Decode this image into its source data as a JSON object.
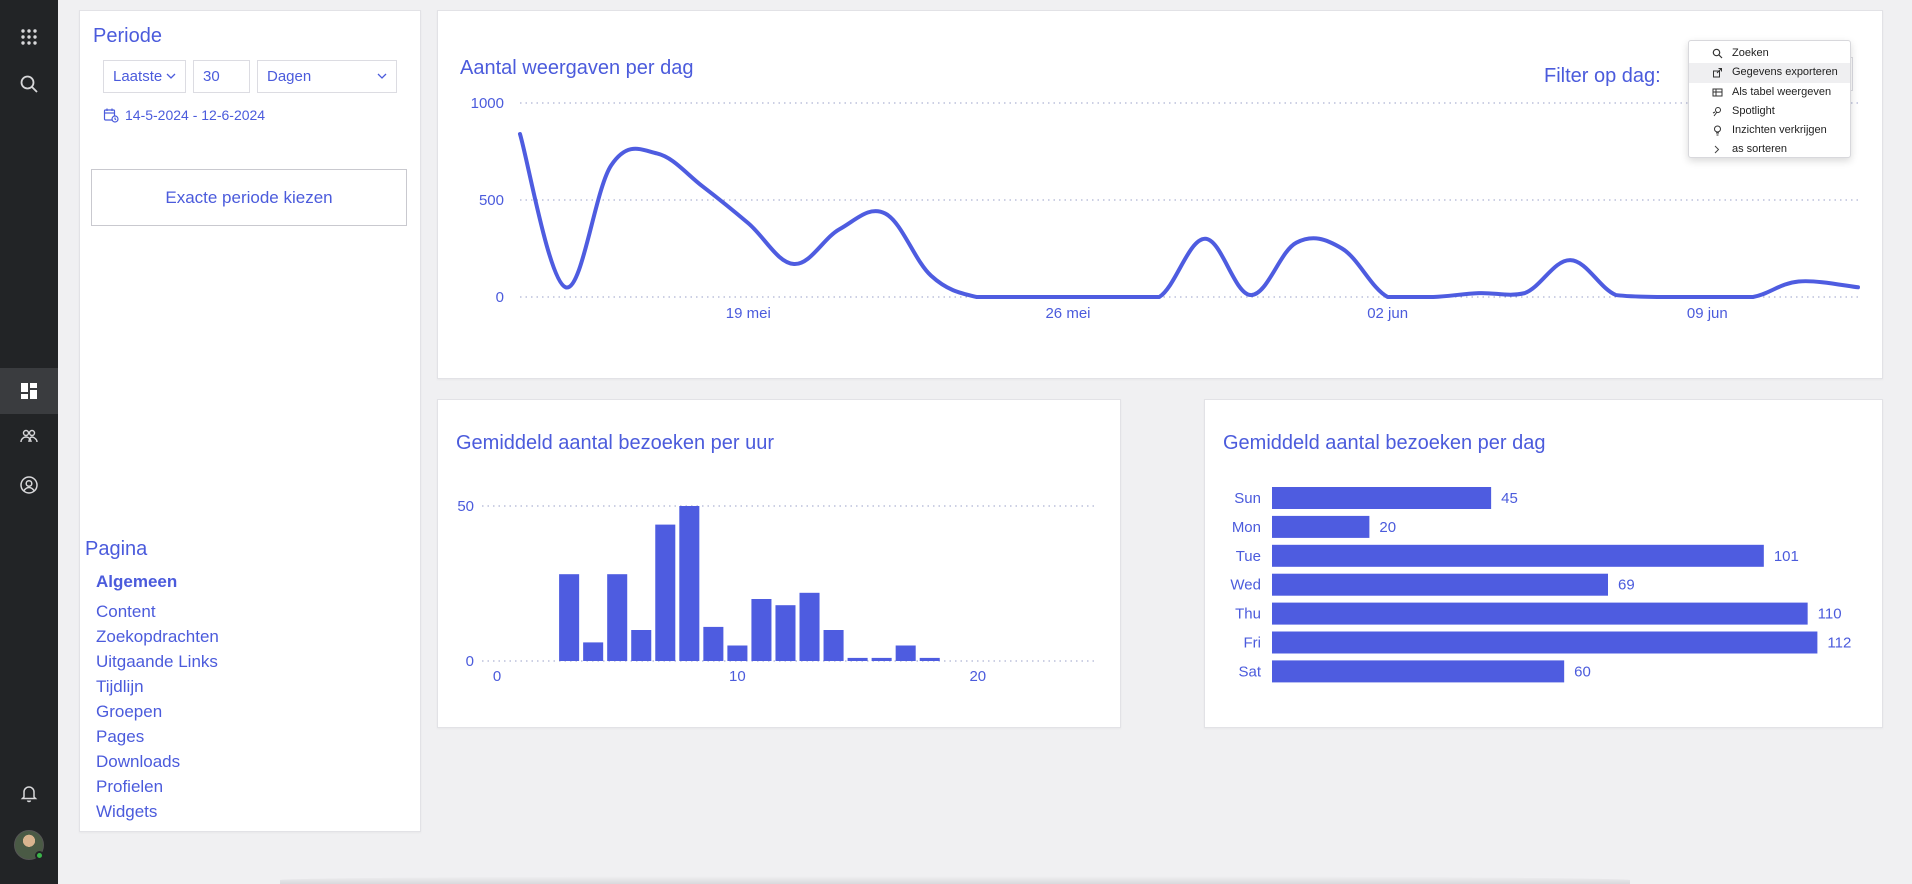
{
  "rail": {
    "icons": [
      "apps-icon",
      "search-icon",
      "dashboard-icon",
      "groups-icon",
      "account-icon",
      "bell-icon"
    ]
  },
  "period": {
    "title": "Periode",
    "range_type": "Laatste",
    "amount": "30",
    "unit": "Dagen",
    "date_range": "14-5-2024 - 12-6-2024",
    "exact_button": "Exacte periode kiezen"
  },
  "pages": {
    "title": "Pagina",
    "items": [
      "Algemeen",
      "Content",
      "Zoekopdrachten",
      "Uitgaande Links",
      "Tijdlijn",
      "Groepen",
      "Pages",
      "Downloads",
      "Profielen",
      "Widgets"
    ]
  },
  "views_chart": {
    "filter_label": "Filter op dag:"
  },
  "context_menu": {
    "items": [
      {
        "label": "Zoeken",
        "icon": "search-icon"
      },
      {
        "label": "Gegevens exporteren",
        "icon": "export-icon"
      },
      {
        "label": "Als tabel weergeven",
        "icon": "table-icon"
      },
      {
        "label": "Spotlight",
        "icon": "spotlight-icon"
      },
      {
        "label": "Inzichten verkrijgen",
        "icon": "lightbulb-icon"
      },
      {
        "label": "as sorteren",
        "icon": ""
      }
    ]
  },
  "chart_data": [
    {
      "type": "line",
      "title": "Aantal weergaven per dag",
      "x": [
        "2024-05-14",
        "2024-05-15",
        "2024-05-16",
        "2024-05-17",
        "2024-05-18",
        "2024-05-19",
        "2024-05-20",
        "2024-05-21",
        "2024-05-22",
        "2024-05-23",
        "2024-05-24",
        "2024-05-25",
        "2024-05-26",
        "2024-05-27",
        "2024-05-28",
        "2024-05-29",
        "2024-05-30",
        "2024-05-31",
        "2024-06-01",
        "2024-06-02",
        "2024-06-03",
        "2024-06-04",
        "2024-06-05",
        "2024-06-06",
        "2024-06-07",
        "2024-06-08",
        "2024-06-09",
        "2024-06-10",
        "2024-06-11"
      ],
      "values": [
        840,
        50,
        680,
        740,
        570,
        380,
        170,
        350,
        430,
        110,
        0,
        0,
        0,
        0,
        0,
        300,
        10,
        280,
        250,
        0,
        0,
        20,
        20,
        190,
        10,
        0,
        0,
        0,
        80
      ],
      "series_tail": 50,
      "ylim": [
        0,
        1000
      ],
      "yticks": [
        "0",
        "500",
        "1000"
      ],
      "xticks": [
        "19 mei",
        "26 mei",
        "02 jun",
        "09 jun"
      ],
      "xtick_dates": [
        "2024-05-19",
        "2024-05-26",
        "2024-06-02",
        "2024-06-09"
      ],
      "grid": true
    },
    {
      "type": "bar",
      "title": "Gemiddeld aantal bezoeken per uur",
      "categories": [
        3,
        4,
        5,
        6,
        7,
        8,
        9,
        10,
        11,
        12,
        13,
        14,
        15,
        16,
        17,
        18
      ],
      "values": [
        28,
        6,
        28,
        10,
        44,
        50,
        11,
        5,
        20,
        18,
        22,
        10,
        1,
        1,
        5,
        1
      ],
      "xlim": [
        0,
        25
      ],
      "ylim": [
        0,
        50
      ],
      "xticks": [
        "0",
        "10",
        "20"
      ],
      "yticks": [
        "0",
        "50"
      ],
      "grid": true
    },
    {
      "type": "bar",
      "orientation": "horizontal",
      "title": "Gemiddeld aantal bezoeken per dag",
      "categories": [
        "Sun",
        "Mon",
        "Tue",
        "Wed",
        "Thu",
        "Fri",
        "Sat"
      ],
      "values": [
        45,
        20,
        101,
        69,
        110,
        112,
        60
      ],
      "data_labels": [
        "45",
        "20",
        "101",
        "69",
        "110",
        "112",
        "60"
      ]
    }
  ],
  "colors": {
    "accent": "#4b5bdc",
    "bar": "#4e5ce0",
    "rail": "#222426",
    "background": "#f0f0f2"
  }
}
